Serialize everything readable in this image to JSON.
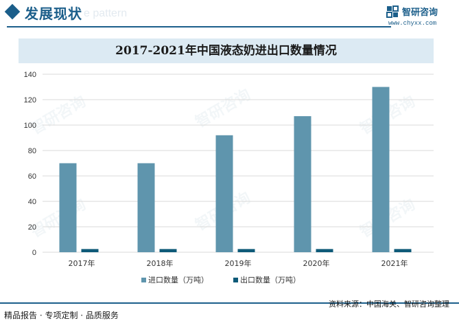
{
  "header": {
    "section_title": "发展现状",
    "section_ghost": "e pattern",
    "brand_name": "智研咨询",
    "brand_url": "www.chyxx.com"
  },
  "colors": {
    "brand": "#1b5e8a",
    "import_bar": "#5f95ad",
    "export_bar": "#0e5a78"
  },
  "chart_data": {
    "type": "bar",
    "title": "2017-2021年中国液态奶进出口数量情况",
    "categories": [
      "2017年",
      "2018年",
      "2019年",
      "2020年",
      "2021年"
    ],
    "series": [
      {
        "name": "进口数量（万吨）",
        "values": [
          70,
          70,
          92,
          107,
          130
        ]
      },
      {
        "name": "出口数量（万吨）",
        "values": [
          2.5,
          2.5,
          2.5,
          2.5,
          2.5
        ]
      }
    ],
    "ylim": [
      0,
      140
    ],
    "yticks": [
      0,
      20,
      40,
      60,
      80,
      100,
      120,
      140
    ],
    "grid": true,
    "legend": "bottom"
  },
  "watermarks": [
    "智研咨询",
    "智研咨询",
    "智研咨询",
    "智研咨询",
    "智研咨询",
    "智研咨询"
  ],
  "footer": {
    "left": "精品报告 · 专项定制 · 品质服务",
    "source": "资料来源：中国海关、智研咨询整理",
    "brand": "智研咨询"
  }
}
